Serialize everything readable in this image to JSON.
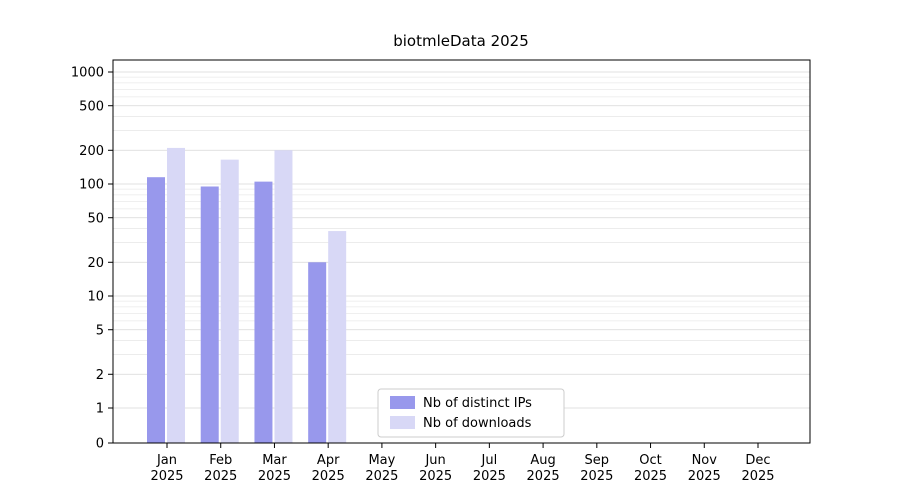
{
  "chart_data": {
    "type": "bar",
    "title": "biotmleData 2025",
    "xlabel": "",
    "ylabel": "",
    "categories": [
      "Jan 2025",
      "Feb 2025",
      "Mar 2025",
      "Apr 2025",
      "May 2025",
      "Jun 2025",
      "Jul 2025",
      "Aug 2025",
      "Sep 2025",
      "Oct 2025",
      "Nov 2025",
      "Dec 2025"
    ],
    "series": [
      {
        "name": "Nb of distinct IPs",
        "color": "#9898ec",
        "values": [
          115,
          95,
          105,
          20,
          0,
          0,
          0,
          0,
          0,
          0,
          0,
          0
        ]
      },
      {
        "name": "Nb of downloads",
        "color": "#d8d8f6",
        "values": [
          210,
          165,
          200,
          38,
          0,
          0,
          0,
          0,
          0,
          0,
          0,
          0
        ]
      }
    ],
    "yscale": "symlog",
    "yticks": [
      0,
      1,
      2,
      5,
      10,
      20,
      50,
      100,
      200,
      500,
      1000
    ],
    "minor_yticks": [
      3,
      4,
      6,
      7,
      8,
      9,
      30,
      40,
      60,
      70,
      80,
      90,
      300,
      400,
      600,
      700,
      800,
      900
    ],
    "ylim": [
      0,
      1000
    ],
    "grid": true,
    "legend_position": "lower center"
  },
  "colors": {
    "grid_major": "#d8d8d8",
    "grid_minor": "#eaeaea",
    "axis": "#000000",
    "legend_border": "#cccccc",
    "background": "#ffffff"
  }
}
